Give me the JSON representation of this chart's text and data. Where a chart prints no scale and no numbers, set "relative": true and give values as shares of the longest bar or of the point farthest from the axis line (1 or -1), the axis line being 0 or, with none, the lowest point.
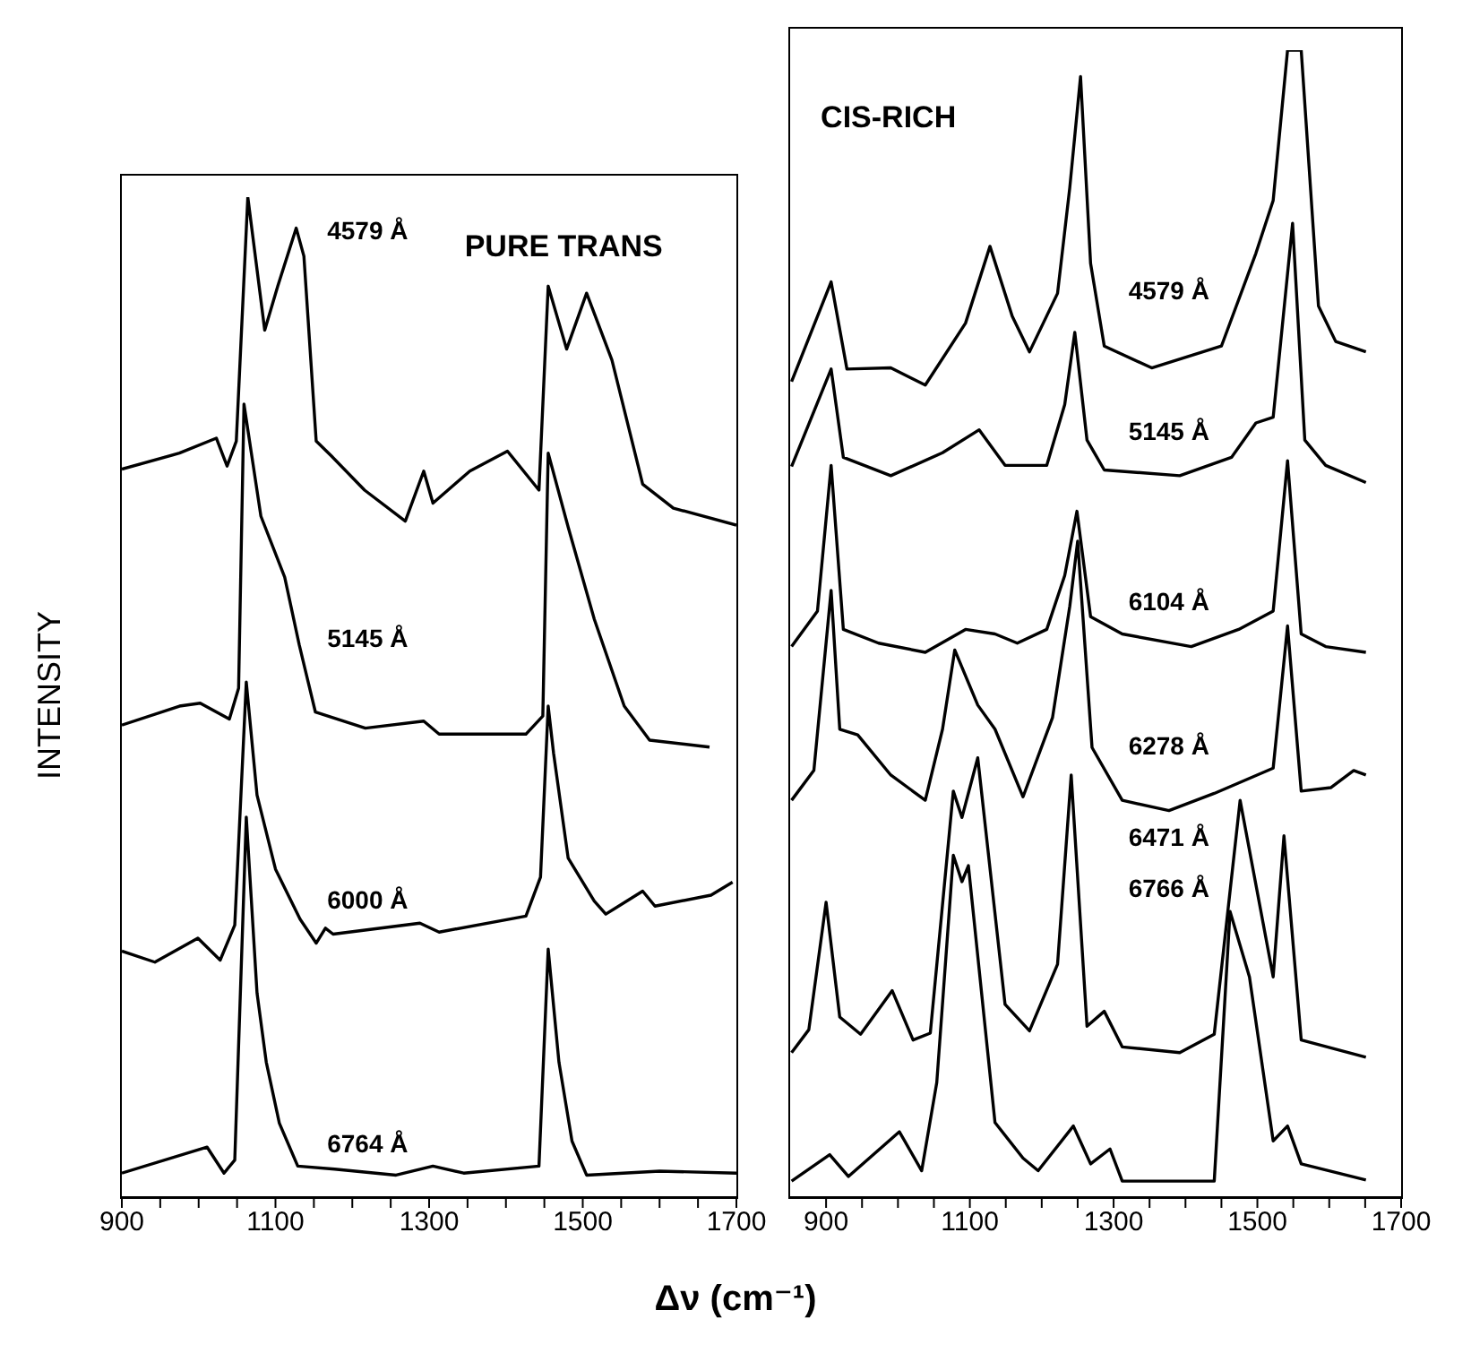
{
  "chart_data": [
    {
      "type": "line",
      "title": "PURE TRANS",
      "ylabel": "INTENSITY",
      "xlabel": "Δν (cm⁻¹)",
      "relative": true,
      "xlim": [
        900,
        1700
      ],
      "xticks": [
        900,
        {
          "value": 950,
          "label": null
        },
        {
          "value": 1000,
          "label": null
        },
        {
          "value": 1050,
          "label": null
        },
        1100,
        {
          "value": 1150,
          "label": null
        },
        {
          "value": 1200,
          "label": null
        },
        {
          "value": 1250,
          "label": null
        },
        1300,
        {
          "value": 1350,
          "label": null
        },
        {
          "value": 1400,
          "label": null
        },
        {
          "value": 1450,
          "label": null
        },
        1500,
        {
          "value": 1550,
          "label": null
        },
        {
          "value": 1600,
          "label": null
        },
        {
          "value": 1650,
          "label": null
        },
        1700
      ],
      "series": [
        {
          "name": "4579 Å",
          "color": "#000000",
          "x": [
            900,
            975,
            1023,
            1037,
            1049,
            1064,
            1086,
            1103,
            1127,
            1137,
            1153,
            1173,
            1216,
            1269,
            1293,
            1305,
            1353,
            1402,
            1443,
            1455,
            1479,
            1505,
            1538,
            1578,
            1618,
            1700
          ],
          "values": [
            0.728,
            0.744,
            0.759,
            0.731,
            0.756,
            1,
            0.867,
            0.911,
            0.969,
            0.941,
            0.756,
            0.741,
            0.707,
            0.676,
            0.726,
            0.694,
            0.726,
            0.746,
            0.707,
            0.911,
            0.848,
            0.904,
            0.837,
            0.713,
            0.689,
            0.672
          ]
        },
        {
          "name": "5145 Å",
          "color": "#000000",
          "x": [
            900,
            975,
            1002,
            1040,
            1052,
            1059,
            1081,
            1112,
            1131,
            1152,
            1217,
            1293,
            1313,
            1426,
            1448,
            1455,
            1481,
            1515,
            1554,
            1587,
            1665
          ],
          "values": [
            0.472,
            0.491,
            0.494,
            0.478,
            0.509,
            0.793,
            0.681,
            0.62,
            0.552,
            0.485,
            0.469,
            0.476,
            0.463,
            0.463,
            0.481,
            0.744,
            0.67,
            0.578,
            0.491,
            0.457,
            0.45
          ]
        },
        {
          "name": "6000 Å",
          "color": "#000000",
          "x": [
            900,
            943,
            999,
            1028,
            1047,
            1062,
            1076,
            1100,
            1132,
            1153,
            1165,
            1175,
            1288,
            1313,
            1426,
            1445,
            1455,
            1462,
            1481,
            1515,
            1530,
            1578,
            1594,
            1667,
            1695
          ],
          "values": [
            0.246,
            0.235,
            0.259,
            0.237,
            0.272,
            0.515,
            0.402,
            0.328,
            0.278,
            0.254,
            0.269,
            0.263,
            0.274,
            0.265,
            0.281,
            0.32,
            0.491,
            0.444,
            0.339,
            0.296,
            0.283,
            0.306,
            0.291,
            0.302,
            0.315
          ]
        },
        {
          "name": "6764 Å",
          "color": "#000000",
          "x": [
            900,
            1011,
            1033,
            1047,
            1062,
            1076,
            1088,
            1105,
            1129,
            1177,
            1257,
            1305,
            1345,
            1443,
            1455,
            1469,
            1486,
            1505,
            1600,
            1700
          ],
          "values": [
            0.024,
            0.05,
            0.024,
            0.037,
            0.38,
            0.204,
            0.135,
            0.074,
            0.031,
            0.028,
            0.022,
            0.031,
            0.024,
            0.031,
            0.248,
            0.135,
            0.056,
            0.022,
            0.026,
            0.024
          ]
        }
      ]
    },
    {
      "type": "line",
      "title": "CIS-RICH",
      "relative": true,
      "xlim": [
        850,
        1700
      ],
      "xticks": [
        900,
        {
          "value": 950,
          "label": null
        },
        {
          "value": 1000,
          "label": null
        },
        {
          "value": 1050,
          "label": null
        },
        1100,
        {
          "value": 1150,
          "label": null
        },
        {
          "value": 1200,
          "label": null
        },
        {
          "value": 1250,
          "label": null
        },
        1300,
        {
          "value": 1350,
          "label": null
        },
        {
          "value": 1400,
          "label": null
        },
        {
          "value": 1450,
          "label": null
        },
        1500,
        {
          "value": 1550,
          "label": null
        },
        {
          "value": 1600,
          "label": null
        },
        {
          "value": 1650,
          "label": null
        },
        1700
      ],
      "series": [
        {
          "name": "4579 Å",
          "color": "#000000",
          "x": [
            852,
            907,
            929,
            990,
            1038,
            1094,
            1128,
            1159,
            1183,
            1222,
            1239,
            1254,
            1268,
            1287,
            1353,
            1450,
            1498,
            1522,
            1542,
            1561,
            1585,
            1609,
            1651
          ],
          "values": [
            0.711,
            0.798,
            0.722,
            0.723,
            0.708,
            0.762,
            0.829,
            0.768,
            0.737,
            0.788,
            0.88,
            0.977,
            0.814,
            0.742,
            0.723,
            0.742,
            0.823,
            0.869,
            1,
            1,
            0.777,
            0.746,
            0.737
          ]
        },
        {
          "name": "5145 Å",
          "color": "#000000",
          "x": [
            852,
            907,
            924,
            990,
            1062,
            1113,
            1149,
            1207,
            1232,
            1246,
            1263,
            1287,
            1392,
            1464,
            1498,
            1522,
            1549,
            1566,
            1595,
            1651
          ],
          "values": [
            0.637,
            0.722,
            0.645,
            0.629,
            0.649,
            0.669,
            0.638,
            0.638,
            0.691,
            0.754,
            0.66,
            0.634,
            0.629,
            0.645,
            0.675,
            0.68,
            0.849,
            0.66,
            0.638,
            0.623
          ]
        },
        {
          "name": "6104 Å",
          "color": "#000000",
          "x": [
            852,
            888,
            907,
            924,
            973,
            1038,
            1094,
            1135,
            1166,
            1207,
            1232,
            1249,
            1268,
            1312,
            1408,
            1474,
            1522,
            1542,
            1561,
            1595,
            1651
          ],
          "values": [
            0.48,
            0.511,
            0.638,
            0.495,
            0.483,
            0.475,
            0.495,
            0.491,
            0.483,
            0.495,
            0.542,
            0.598,
            0.506,
            0.491,
            0.48,
            0.495,
            0.511,
            0.642,
            0.491,
            0.48,
            0.475
          ]
        },
        {
          "name": "6278 Å",
          "color": "#000000",
          "x": [
            852,
            883,
            907,
            919,
            944,
            990,
            1038,
            1062,
            1079,
            1111,
            1135,
            1174,
            1215,
            1239,
            1250,
            1270,
            1312,
            1377,
            1440,
            1522,
            1542,
            1561,
            1602,
            1634,
            1651
          ],
          "values": [
            0.346,
            0.372,
            0.529,
            0.408,
            0.403,
            0.368,
            0.346,
            0.408,
            0.477,
            0.429,
            0.408,
            0.349,
            0.418,
            0.515,
            0.572,
            0.392,
            0.346,
            0.337,
            0.352,
            0.374,
            0.498,
            0.354,
            0.357,
            0.372,
            0.368
          ]
        },
        {
          "name": "6471 Å",
          "color": "#000000",
          "x": [
            852,
            876,
            900,
            919,
            948,
            992,
            1021,
            1045,
            1077,
            1089,
            1111,
            1149,
            1183,
            1222,
            1241,
            1263,
            1287,
            1312,
            1392,
            1440,
            1476,
            1522,
            1537,
            1561,
            1651
          ],
          "values": [
            0.126,
            0.146,
            0.257,
            0.157,
            0.142,
            0.18,
            0.137,
            0.143,
            0.354,
            0.331,
            0.383,
            0.168,
            0.145,
            0.203,
            0.368,
            0.149,
            0.162,
            0.131,
            0.126,
            0.142,
            0.346,
            0.192,
            0.315,
            0.137,
            0.122
          ]
        },
        {
          "name": "6766 Å",
          "color": "#000000",
          "x": [
            852,
            905,
            931,
            1002,
            1033,
            1054,
            1077,
            1089,
            1098,
            1135,
            1174,
            1195,
            1244,
            1268,
            1295,
            1312,
            1440,
            1462,
            1489,
            1522,
            1542,
            1561,
            1651
          ],
          "values": [
            0.014,
            0.037,
            0.018,
            0.057,
            0.023,
            0.1,
            0.298,
            0.275,
            0.289,
            0.065,
            0.034,
            0.023,
            0.062,
            0.029,
            0.042,
            0.014,
            0.014,
            0.249,
            0.192,
            0.049,
            0.062,
            0.029,
            0.015
          ]
        }
      ]
    }
  ]
}
